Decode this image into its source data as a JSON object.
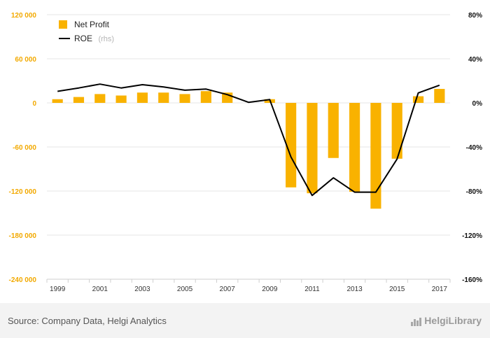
{
  "chart_data": {
    "type": "bar+line",
    "title": "",
    "categories": [
      "1999",
      "2000",
      "2001",
      "2002",
      "2003",
      "2004",
      "2005",
      "2006",
      "2007",
      "2008",
      "2009",
      "2010",
      "2011",
      "2012",
      "2013",
      "2014",
      "2015",
      "2016",
      "2017"
    ],
    "series": [
      {
        "name": "Net Profit",
        "type": "bar",
        "axis": "left",
        "color": "#f9b200",
        "values": [
          5000,
          8000,
          12000,
          10000,
          14000,
          14000,
          12000,
          16000,
          14000,
          0,
          5000,
          -115000,
          -123000,
          -75000,
          -121000,
          -144000,
          -76000,
          9000,
          19000
        ]
      },
      {
        "name": "ROE",
        "legend_suffix": "(rhs)",
        "type": "line",
        "axis": "right",
        "color": "#000000",
        "values": [
          10.5,
          13.5,
          17,
          13.5,
          16.5,
          14.5,
          11.5,
          12.5,
          7.5,
          0.5,
          3,
          -49,
          -84,
          -68,
          -81,
          -81,
          -51,
          9,
          16
        ]
      }
    ],
    "y_left": {
      "ylim": [
        -240000,
        120000
      ],
      "ticks": [
        120000,
        60000,
        0,
        -60000,
        -120000,
        -180000,
        -240000
      ],
      "tick_labels": [
        "120 000",
        "60 000",
        "0",
        "-60 000",
        "-120 000",
        "-180 000",
        "-240 000"
      ]
    },
    "y_right": {
      "ylim": [
        -160,
        80
      ],
      "ticks": [
        80,
        40,
        0,
        -40,
        -80,
        -120,
        -160
      ],
      "tick_labels": [
        "80%",
        "40%",
        "0%",
        "-40%",
        "-80%",
        "-120%",
        "-160%"
      ]
    },
    "x_tick_labels": [
      "1999",
      "2001",
      "2003",
      "2005",
      "2007",
      "2009",
      "2011",
      "2013",
      "2015",
      "2017"
    ],
    "legend_position": "top-left",
    "grid": true
  },
  "footer": {
    "source": "Source: Company Data, Helgi Analytics",
    "brand": "HelgiLibrary"
  }
}
